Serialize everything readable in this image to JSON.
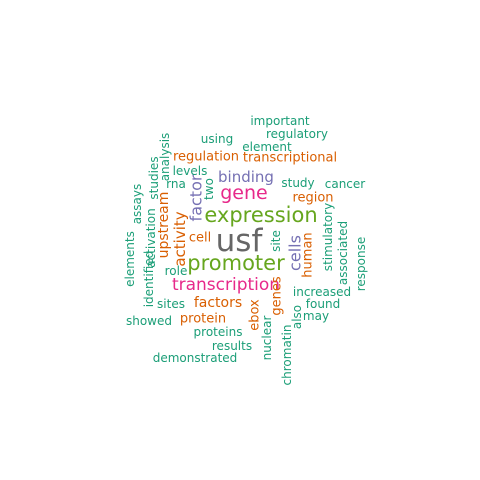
{
  "palette": {
    "teal": "#1b9e77",
    "orange": "#d95f02",
    "purple": "#7570b3",
    "magenta": "#e7298a",
    "green": "#66a61e",
    "gray": "#666666"
  },
  "words": [
    {
      "id": "usf",
      "text": "usf",
      "color": "gray"
    },
    {
      "id": "expression",
      "text": "expression",
      "color": "green"
    },
    {
      "id": "promoter",
      "text": "promoter",
      "color": "green"
    },
    {
      "id": "transcription",
      "text": "transcription",
      "color": "magenta"
    },
    {
      "id": "gene",
      "text": "gene",
      "color": "magenta"
    },
    {
      "id": "binding",
      "text": "binding",
      "color": "purple"
    },
    {
      "id": "factor",
      "text": "factor",
      "color": "purple"
    },
    {
      "id": "cells",
      "text": "cells",
      "color": "purple"
    },
    {
      "id": "activity",
      "text": "activity",
      "color": "orange"
    },
    {
      "id": "upstream",
      "text": "upstream",
      "color": "orange"
    },
    {
      "id": "factors",
      "text": "factors",
      "color": "orange"
    },
    {
      "id": "protein",
      "text": "protein",
      "color": "orange"
    },
    {
      "id": "regulation",
      "text": "regulation",
      "color": "orange"
    },
    {
      "id": "transcriptional",
      "text": "transcriptional",
      "color": "orange"
    },
    {
      "id": "region",
      "text": "region",
      "color": "orange"
    },
    {
      "id": "human",
      "text": "human",
      "color": "orange"
    },
    {
      "id": "genes",
      "text": "genes",
      "color": "orange"
    },
    {
      "id": "ebox",
      "text": "ebox",
      "color": "orange"
    },
    {
      "id": "cell",
      "text": "cell",
      "color": "orange"
    },
    {
      "id": "important",
      "text": "important",
      "color": "teal"
    },
    {
      "id": "regulatory",
      "text": "regulatory",
      "color": "teal"
    },
    {
      "id": "using",
      "text": "using",
      "color": "teal"
    },
    {
      "id": "element",
      "text": "element",
      "color": "teal"
    },
    {
      "id": "analysis",
      "text": "analysis",
      "color": "teal"
    },
    {
      "id": "studies",
      "text": "studies",
      "color": "teal"
    },
    {
      "id": "levels",
      "text": "levels",
      "color": "teal"
    },
    {
      "id": "rna",
      "text": "rna",
      "color": "teal"
    },
    {
      "id": "two",
      "text": "two",
      "color": "teal"
    },
    {
      "id": "study",
      "text": "study",
      "color": "teal"
    },
    {
      "id": "cancer",
      "text": "cancer",
      "color": "teal"
    },
    {
      "id": "assays",
      "text": "assays",
      "color": "teal"
    },
    {
      "id": "activation",
      "text": "activation",
      "color": "teal"
    },
    {
      "id": "elements",
      "text": "elements",
      "color": "teal"
    },
    {
      "id": "identified",
      "text": "identified",
      "color": "teal"
    },
    {
      "id": "role",
      "text": "role",
      "color": "teal"
    },
    {
      "id": "site",
      "text": "site",
      "color": "teal"
    },
    {
      "id": "stimulatory",
      "text": "stimulatory",
      "color": "teal"
    },
    {
      "id": "associated",
      "text": "associated",
      "color": "teal"
    },
    {
      "id": "response",
      "text": "response",
      "color": "teal"
    },
    {
      "id": "increased",
      "text": "increased",
      "color": "teal"
    },
    {
      "id": "found",
      "text": "found",
      "color": "teal"
    },
    {
      "id": "may",
      "text": "may",
      "color": "teal"
    },
    {
      "id": "also",
      "text": "also",
      "color": "teal"
    },
    {
      "id": "sites",
      "text": "sites",
      "color": "teal"
    },
    {
      "id": "showed",
      "text": "showed",
      "color": "teal"
    },
    {
      "id": "proteins",
      "text": "proteins",
      "color": "teal"
    },
    {
      "id": "results",
      "text": "results",
      "color": "teal"
    },
    {
      "id": "demonstrated",
      "text": "demonstrated",
      "color": "teal"
    },
    {
      "id": "nuclear",
      "text": "nuclear",
      "color": "teal"
    },
    {
      "id": "chromatin",
      "text": "chromatin",
      "color": "teal"
    }
  ]
}
